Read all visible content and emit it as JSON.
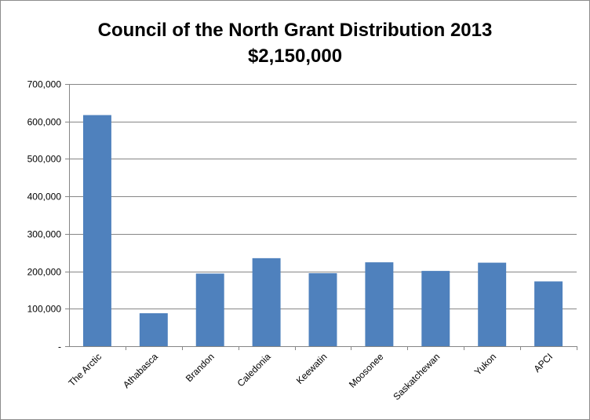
{
  "chart_data": {
    "type": "bar",
    "title": "Council of the North Grant Distribution 2013",
    "subtitle": "$2,150,000",
    "categories": [
      "The Arctic",
      "Athabasca",
      "Brandon",
      "Caledonia",
      "Keewatin",
      "Moosonee",
      "Saskatchewan",
      "Yukon",
      "APCI"
    ],
    "values": [
      617000,
      88000,
      194000,
      235000,
      195000,
      224000,
      201000,
      223000,
      173000
    ],
    "ylim": [
      0,
      700000
    ],
    "y_ticks": [
      0,
      100000,
      200000,
      300000,
      400000,
      500000,
      600000,
      700000
    ],
    "y_tick_labels": [
      "-",
      "100,000",
      "200,000",
      "300,000",
      "400,000",
      "500,000",
      "600,000",
      "700,000"
    ],
    "grid": true,
    "legend": "none",
    "bar_color": "#4f81bd"
  }
}
